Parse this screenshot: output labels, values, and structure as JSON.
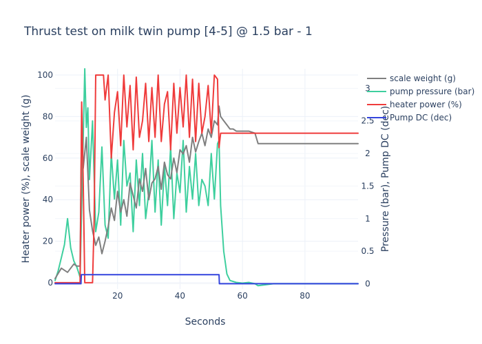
{
  "chart_data": {
    "type": "line",
    "title": "Thrust test on milk twin pump [4-5] @ 1.5 bar - 1",
    "xlabel": "Seconds",
    "ylabel_left": "Heater power (%), scale weight (g)",
    "ylabel_right": "Pressure (bar), Pump DC (dec)",
    "xlim": [
      0,
      97
    ],
    "ylim_left": [
      -3,
      103
    ],
    "ylim_right": [
      -0.08,
      3.3
    ],
    "x_ticks": [
      20,
      40,
      60,
      80
    ],
    "y_left_ticks": [
      0,
      20,
      40,
      60,
      80,
      100
    ],
    "y_right_ticks": [
      0,
      0.5,
      1,
      1.5,
      2,
      2.5,
      3
    ],
    "y_right_tick_labels": [
      "0",
      "0.5",
      "1",
      "1.5",
      "2",
      "2.5",
      "3"
    ],
    "grid": true,
    "legend_position": "top-right",
    "series": [
      {
        "name": "scale weight (g)",
        "axis": "left",
        "color": "#7f7f7f",
        "x": [
          0,
          2,
          4,
          6,
          7,
          8,
          8.5,
          9,
          10,
          11,
          12,
          13,
          14,
          15,
          16,
          17,
          18,
          19,
          20,
          21,
          22,
          23,
          24,
          25,
          26,
          27,
          28,
          29,
          30,
          31,
          32,
          33,
          34,
          35,
          36,
          37,
          38,
          39,
          40,
          41,
          42,
          43,
          44,
          45,
          46,
          47,
          48,
          49,
          50,
          51,
          52,
          52.5,
          53,
          54,
          55,
          56,
          57,
          58,
          60,
          62,
          64,
          65,
          66,
          70,
          80,
          90,
          97
        ],
        "y": [
          2,
          7,
          5,
          9,
          8,
          8,
          80,
          55,
          70,
          35,
          25,
          18,
          22,
          14,
          20,
          27,
          36,
          30,
          44,
          34,
          40,
          32,
          48,
          42,
          36,
          50,
          44,
          55,
          40,
          48,
          50,
          56,
          45,
          58,
          52,
          50,
          60,
          53,
          64,
          62,
          66,
          58,
          70,
          63,
          68,
          72,
          66,
          74,
          70,
          78,
          76,
          85,
          80,
          78,
          76,
          74,
          74,
          73,
          73,
          73,
          72,
          67,
          67,
          67,
          67,
          67,
          67
        ]
      },
      {
        "name": "pump pressure (bar)",
        "axis": "right",
        "color": "#3ecf9e",
        "x": [
          0,
          1,
          2,
          3,
          4,
          5,
          6,
          7,
          8,
          9,
          9.5,
          10,
          10.5,
          11,
          12,
          13,
          14,
          15,
          16,
          17,
          18,
          19,
          20,
          21,
          22,
          23,
          24,
          25,
          26,
          27,
          28,
          29,
          30,
          31,
          32,
          33,
          34,
          35,
          36,
          37,
          38,
          39,
          40,
          41,
          42,
          43,
          44,
          45,
          46,
          47,
          48,
          49,
          50,
          51,
          52,
          52.5,
          53,
          54,
          55,
          56,
          58,
          60,
          62,
          64,
          65,
          70,
          80,
          90,
          97
        ],
        "y": [
          0.05,
          0.2,
          0.4,
          0.6,
          1.0,
          0.55,
          0.35,
          0.25,
          0.1,
          2.2,
          3.3,
          2.4,
          2.7,
          1.6,
          2.5,
          0.8,
          1.1,
          2.1,
          0.9,
          0.7,
          2.0,
          1.3,
          1.9,
          0.9,
          2.2,
          1.5,
          1.7,
          0.8,
          1.9,
          1.2,
          2.0,
          1.0,
          1.4,
          2.2,
          1.1,
          1.9,
          0.9,
          1.8,
          1.2,
          2.1,
          1.0,
          1.7,
          1.4,
          2.2,
          1.1,
          1.8,
          1.3,
          2.0,
          1.2,
          1.6,
          1.5,
          1.2,
          2.0,
          1.3,
          2.15,
          2.2,
          1.2,
          0.5,
          0.15,
          0.05,
          0.02,
          0.01,
          0.02,
          0.0,
          -0.03,
          0.0,
          0.0,
          0.0,
          0.0
        ]
      },
      {
        "name": "heater power (%)",
        "axis": "left",
        "color": "#ef3b3b",
        "x": [
          0,
          7.5,
          8,
          8.5,
          9,
          9.5,
          10,
          11,
          12,
          12.5,
          13,
          14,
          15,
          15.5,
          16,
          17,
          18,
          19,
          20,
          21,
          22,
          23,
          24,
          25,
          26,
          27,
          28,
          29,
          30,
          31,
          32,
          33,
          34,
          35,
          36,
          37,
          38,
          39,
          40,
          41,
          42,
          43,
          44,
          45,
          46,
          47,
          48,
          49,
          50,
          51,
          52,
          52.5,
          53,
          60,
          70,
          80,
          90,
          97
        ],
        "y": [
          0,
          0,
          0,
          87,
          50,
          0,
          0,
          0,
          0,
          30,
          100,
          100,
          100,
          100,
          88,
          100,
          60,
          82,
          92,
          66,
          100,
          75,
          95,
          64,
          99,
          70,
          78,
          96,
          68,
          94,
          70,
          100,
          68,
          86,
          92,
          64,
          96,
          72,
          94,
          75,
          100,
          70,
          98,
          68,
          96,
          72,
          80,
          95,
          72,
          100,
          98,
          65,
          72,
          72,
          72,
          72,
          72,
          72
        ]
      },
      {
        "name": "Pump DC (dec)",
        "axis": "right",
        "color": "#3344dd",
        "x": [
          0,
          8.3,
          8.4,
          52.5,
          52.6,
          60,
          70,
          80,
          90,
          97
        ],
        "y": [
          0.0,
          0.0,
          0.14,
          0.14,
          0.0,
          0.0,
          0.0,
          0.0,
          0.0,
          0.0
        ]
      }
    ]
  }
}
